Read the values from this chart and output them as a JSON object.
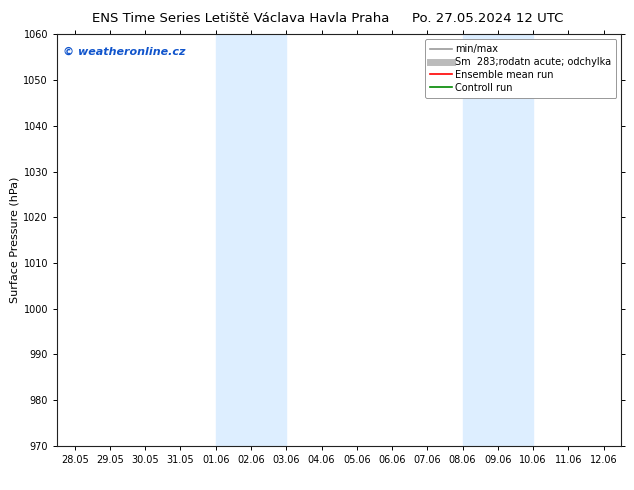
{
  "title_left": "ENS Time Series Letiště Václava Havla Praha",
  "title_right": "Po. 27.05.2024 12 UTC",
  "ylabel": "Surface Pressure (hPa)",
  "ylim": [
    970,
    1060
  ],
  "yticks": [
    970,
    980,
    990,
    1000,
    1010,
    1020,
    1030,
    1040,
    1050,
    1060
  ],
  "xtick_labels": [
    "28.05",
    "29.05",
    "30.05",
    "31.05",
    "01.06",
    "02.06",
    "03.06",
    "04.06",
    "05.06",
    "06.06",
    "07.06",
    "08.06",
    "09.06",
    "10.06",
    "11.06",
    "12.06"
  ],
  "xtick_positions": [
    0,
    1,
    2,
    3,
    4,
    5,
    6,
    7,
    8,
    9,
    10,
    11,
    12,
    13,
    14,
    15
  ],
  "xlim": [
    -0.5,
    15.5
  ],
  "blue_bands": [
    {
      "x_start": 4,
      "x_end": 6
    },
    {
      "x_start": 11,
      "x_end": 13
    }
  ],
  "band_color": "#ddeeff",
  "background_color": "#ffffff",
  "watermark_text": "© weatheronline.cz",
  "watermark_color": "#1155cc",
  "legend_items": [
    {
      "label": "min/max",
      "color": "#999999",
      "lw": 1.2
    },
    {
      "label": "Sm  283;rodatn acute; odchylka",
      "color": "#bbbbbb",
      "lw": 5
    },
    {
      "label": "Ensemble mean run",
      "color": "#ff0000",
      "lw": 1.2
    },
    {
      "label": "Controll run",
      "color": "#008800",
      "lw": 1.2
    }
  ],
  "title_fontsize": 9.5,
  "ylabel_fontsize": 8,
  "tick_fontsize": 7,
  "watermark_fontsize": 8,
  "legend_fontsize": 7
}
